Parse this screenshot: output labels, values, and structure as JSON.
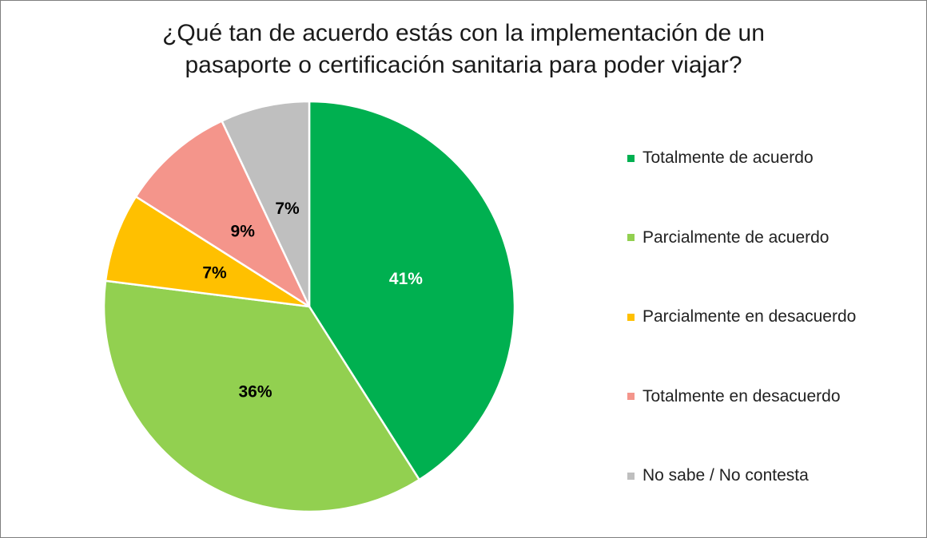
{
  "chart_data": {
    "type": "pie",
    "title_lines": [
      "¿Qué tan de acuerdo estás con la implementación de un",
      "pasaporte o certificación sanitaria para poder viajar?"
    ],
    "legend_position": "right",
    "slices": [
      {
        "label": "Totalmente de acuerdo",
        "value": 41,
        "data_label": "41%",
        "color": "#00B050",
        "label_color": "#ffffff"
      },
      {
        "label": "Parcialmente de acuerdo",
        "value": 36,
        "data_label": "36%",
        "color": "#92D050",
        "label_color": "#000000"
      },
      {
        "label": "Parcialmente en desacuerdo",
        "value": 7,
        "data_label": "7%",
        "color": "#FFC000",
        "label_color": "#000000"
      },
      {
        "label": "Totalmente en desacuerdo",
        "value": 9,
        "data_label": "9%",
        "color": "#F4958B",
        "label_color": "#000000"
      },
      {
        "label": "No sabe / No contesta",
        "value": 7,
        "data_label": "7%",
        "color": "#BFBFBF",
        "label_color": "#000000"
      }
    ]
  }
}
